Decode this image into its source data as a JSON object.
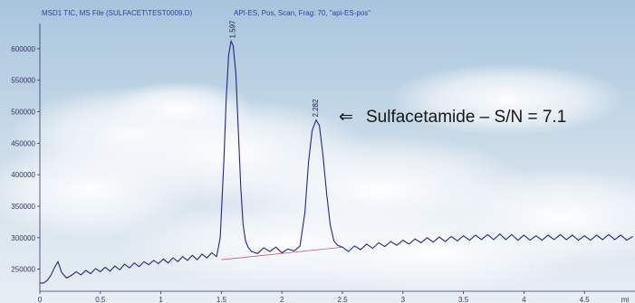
{
  "chart_data": {
    "type": "line",
    "header": {
      "file": "MSD1 TIC, MS File (SULFACET\\TEST0009.D)",
      "method": "API-ES, Pos, Scan, Frag: 70, \"api-ES-pos\""
    },
    "xlabel": "",
    "ylabel": "",
    "x_unit_label": "mi",
    "xlim": [
      0,
      4.92
    ],
    "ylim": [
      215000,
      640000
    ],
    "x_ticks": [
      "0",
      "0.5",
      "1",
      "1.5",
      "2",
      "2.5",
      "3",
      "3.5",
      "4",
      "4.5"
    ],
    "y_ticks": [
      "250000",
      "300000",
      "350000",
      "400000",
      "450000",
      "500000",
      "550000",
      "600000"
    ],
    "grid": false,
    "line_color": "#26267e",
    "baseline_color": "#c45a78",
    "peaks": [
      {
        "label": "1.597",
        "x": 1.597,
        "y": 612000
      },
      {
        "label": "2.282",
        "x": 2.282,
        "y": 487000
      }
    ],
    "baseline": {
      "x": [
        1.5,
        2.5
      ],
      "y": [
        265000,
        285000
      ]
    },
    "annotation": {
      "arrow": "⇐",
      "text": "Sulfacetamide – S/N = 7.1"
    },
    "series": [
      {
        "name": "",
        "x": [
          0.0,
          0.03,
          0.06,
          0.09,
          0.12,
          0.15,
          0.18,
          0.22,
          0.26,
          0.3,
          0.34,
          0.38,
          0.42,
          0.46,
          0.5,
          0.54,
          0.58,
          0.62,
          0.66,
          0.7,
          0.74,
          0.78,
          0.82,
          0.86,
          0.9,
          0.94,
          0.98,
          1.02,
          1.06,
          1.1,
          1.14,
          1.18,
          1.22,
          1.26,
          1.3,
          1.34,
          1.38,
          1.42,
          1.46,
          1.49,
          1.52,
          1.54,
          1.56,
          1.58,
          1.597,
          1.62,
          1.64,
          1.66,
          1.68,
          1.7,
          1.72,
          1.75,
          1.8,
          1.85,
          1.9,
          1.95,
          2.0,
          2.05,
          2.1,
          2.15,
          2.19,
          2.22,
          2.25,
          2.282,
          2.31,
          2.34,
          2.37,
          2.4,
          2.43,
          2.46,
          2.5,
          2.55,
          2.6,
          2.65,
          2.7,
          2.75,
          2.8,
          2.85,
          2.9,
          2.95,
          3.0,
          3.05,
          3.1,
          3.15,
          3.2,
          3.25,
          3.3,
          3.35,
          3.4,
          3.45,
          3.5,
          3.55,
          3.6,
          3.65,
          3.7,
          3.75,
          3.8,
          3.85,
          3.9,
          3.95,
          4.0,
          4.05,
          4.1,
          4.15,
          4.2,
          4.25,
          4.3,
          4.35,
          4.4,
          4.45,
          4.5,
          4.55,
          4.6,
          4.65,
          4.7,
          4.75,
          4.8,
          4.85,
          4.9
        ],
        "y": [
          228000,
          228000,
          232000,
          240000,
          252000,
          262000,
          245000,
          236000,
          240000,
          246000,
          241000,
          248000,
          243000,
          251000,
          246000,
          253000,
          247000,
          255000,
          249000,
          258000,
          252000,
          260000,
          254000,
          262000,
          257000,
          264000,
          259000,
          266000,
          260000,
          268000,
          262000,
          270000,
          264000,
          272000,
          265000,
          274000,
          268000,
          276000,
          270000,
          300000,
          420000,
          520000,
          590000,
          612000,
          605000,
          560000,
          470000,
          380000,
          320000,
          295000,
          285000,
          278000,
          275000,
          284000,
          278000,
          285000,
          276000,
          282000,
          279000,
          287000,
          340000,
          420000,
          470000,
          487000,
          478000,
          430000,
          370000,
          320000,
          295000,
          288000,
          285000,
          278000,
          287000,
          281000,
          290000,
          283000,
          292000,
          286000,
          294000,
          288000,
          296000,
          290000,
          298000,
          292000,
          300000,
          293000,
          301000,
          294000,
          302000,
          295000,
          303000,
          296000,
          304000,
          297000,
          305000,
          297000,
          306000,
          297000,
          305000,
          296000,
          304000,
          296000,
          303000,
          296000,
          304000,
          297000,
          305000,
          297000,
          304000,
          296000,
          303000,
          296000,
          304000,
          297000,
          305000,
          297000,
          304000,
          296000,
          302000
        ]
      }
    ]
  }
}
